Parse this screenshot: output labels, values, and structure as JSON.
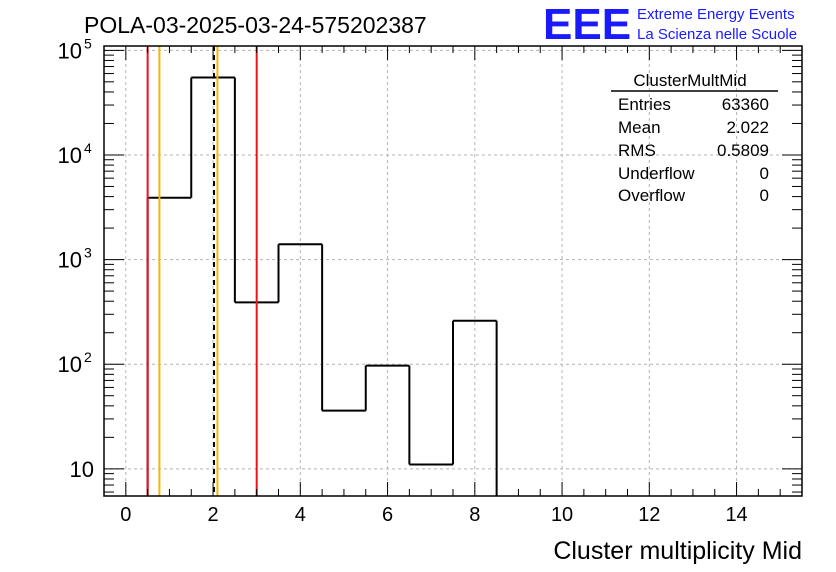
{
  "header": {
    "run_title": "POLA-03-2025-03-24-575202387",
    "logo_text": "EEE",
    "logo_line1": "Extreme Energy Events",
    "logo_line2": "La Scienza nelle Scuole"
  },
  "stats_box": {
    "title": "ClusterMultMid",
    "rows": [
      {
        "label": "Entries",
        "value": "63360"
      },
      {
        "label": "Mean",
        "value": "2.022"
      },
      {
        "label": "RMS",
        "value": "0.5809"
      },
      {
        "label": "Underflow",
        "value": "0"
      },
      {
        "label": "Overflow",
        "value": "0"
      }
    ]
  },
  "colors": {
    "histogram": "#000000",
    "red_lines": "#e8141b",
    "orange_lines": "#f5b800",
    "logo": "#1a1aff",
    "grid": "#b4b4b4"
  },
  "chart_data": {
    "type": "histogram",
    "title": "",
    "xlabel": "Cluster multiplicity Mid",
    "ylabel": "",
    "xlim": [
      -0.5,
      15.5
    ],
    "ylim": [
      5.5,
      110000
    ],
    "yscale": "log",
    "grid": true,
    "bin_width": 1,
    "bins": [
      {
        "x": 0,
        "count": 0
      },
      {
        "x": 1,
        "count": 3900
      },
      {
        "x": 2,
        "count": 55000
      },
      {
        "x": 3,
        "count": 390
      },
      {
        "x": 4,
        "count": 1400
      },
      {
        "x": 5,
        "count": 36
      },
      {
        "x": 6,
        "count": 97
      },
      {
        "x": 7,
        "count": 11
      },
      {
        "x": 8,
        "count": 260
      }
    ],
    "x_ticks": [
      0,
      2,
      4,
      6,
      8,
      10,
      12,
      14
    ],
    "x_tick_labels": [
      "0",
      "2",
      "4",
      "6",
      "8",
      "10",
      "12",
      "14"
    ],
    "y_ticks": [
      10,
      100,
      1000,
      10000,
      100000
    ],
    "y_tick_labels": [
      {
        "base": "10",
        "exp": ""
      },
      {
        "base": "10",
        "exp": "2"
      },
      {
        "base": "10",
        "exp": "3"
      },
      {
        "base": "10",
        "exp": "4"
      },
      {
        "base": "10",
        "exp": "5"
      }
    ],
    "vertical_markers": [
      {
        "x": 0.5,
        "color": "red",
        "style": "solid"
      },
      {
        "x": 3.0,
        "color": "red",
        "style": "solid"
      },
      {
        "x": 0.77,
        "color": "orange",
        "style": "solid"
      },
      {
        "x": 2.1,
        "color": "orange",
        "style": "solid"
      },
      {
        "x": 2.022,
        "color": "black",
        "style": "dashed"
      }
    ]
  }
}
